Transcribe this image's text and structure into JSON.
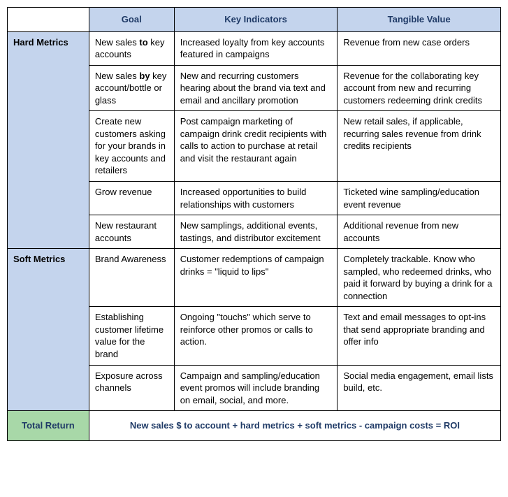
{
  "columns": {
    "goal": "Goal",
    "key": "Key Indicators",
    "val": "Tangible Value"
  },
  "sections": {
    "hard": {
      "label": "Hard Metrics",
      "rows": [
        {
          "goal_pre": "New sales ",
          "goal_bold": "to",
          "goal_post": " key accounts",
          "key": "Increased loyalty from key accounts featured in campaigns",
          "val": "Revenue from new case orders"
        },
        {
          "goal_pre": "New sales ",
          "goal_bold": "by",
          "goal_post": " key account/bottle or glass",
          "key": "New and recurring customers hearing about the brand via text and email and ancillary promotion",
          "val": "Revenue for the collaborating key account from new and recurring customers redeeming drink credits"
        },
        {
          "goal_pre": "Create new customers asking for your brands in key accounts and retailers",
          "goal_bold": "",
          "goal_post": "",
          "key": "Post campaign marketing of campaign drink credit recipients with calls to action to purchase at retail and visit the restaurant again",
          "val": "New retail sales, if applicable, recurring sales revenue from drink credits recipients"
        },
        {
          "goal_pre": "Grow revenue",
          "goal_bold": "",
          "goal_post": "",
          "key": "Increased opportunities to build relationships with customers",
          "val": "Ticketed wine sampling/education event revenue"
        },
        {
          "goal_pre": "New restaurant accounts",
          "goal_bold": "",
          "goal_post": "",
          "key": "New samplings, additional events, tastings, and distributor excitement",
          "val": "Additional revenue from new accounts"
        }
      ]
    },
    "soft": {
      "label": "Soft Metrics",
      "rows": [
        {
          "goal_pre": "Brand Awareness",
          "goal_bold": "",
          "goal_post": "",
          "key": "Customer redemptions of campaign drinks = \"liquid to lips\"",
          "val": "Completely trackable. Know who sampled, who redeemed drinks, who paid it forward by buying a drink for a connection"
        },
        {
          "goal_pre": "Establishing customer lifetime value for the brand",
          "goal_bold": "",
          "goal_post": "",
          "key": "Ongoing \"touchs\" which serve to reinforce other promos or calls to action.",
          "val": "Text and email messages to opt-ins that send appropriate branding and offer info"
        },
        {
          "goal_pre": "Exposure across channels",
          "goal_bold": "",
          "goal_post": "",
          "key": "Campaign and sampling/education event promos will include branding on email, social, and more.",
          "val": "Social media engagement, email lists build, etc."
        }
      ]
    }
  },
  "total": {
    "label": "Total Return",
    "formula": "New sales $ to account + hard metrics + soft metrics - campaign costs  = ROI"
  },
  "colors": {
    "header_bg": "#c4d4ed",
    "header_text": "#1f3a66",
    "total_bg": "#a8d8a8",
    "border": "#000000",
    "body_text": "#000000"
  }
}
